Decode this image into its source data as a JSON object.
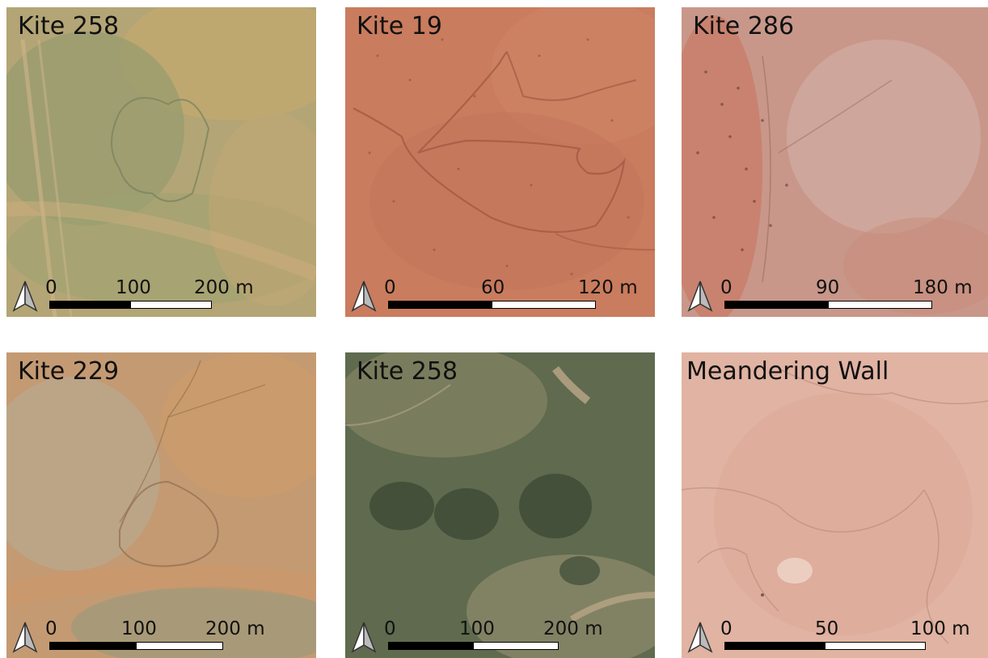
{
  "panels": [
    {
      "title": "Kite 258",
      "scale": [
        "0",
        "100",
        "200 m"
      ],
      "base_color": "#b8a878"
    },
    {
      "title": "Kite 19",
      "scale": [
        "0",
        "60",
        "120 m"
      ],
      "base_color": "#c97a5c"
    },
    {
      "title": "Kite 286",
      "scale": [
        "0",
        "90",
        "180 m"
      ],
      "base_color": "#c99480"
    },
    {
      "title": "Kite 229",
      "scale": [
        "0",
        "100",
        "200 m"
      ],
      "base_color": "#c89a70"
    },
    {
      "title": "Kite 258",
      "scale": [
        "0",
        "100",
        "200 m"
      ],
      "base_color": "#5e6a4e"
    },
    {
      "title": "Meandering Wall",
      "scale": [
        "0",
        "50",
        "100 m"
      ],
      "base_color": "#e0b0a0"
    }
  ],
  "icons": {
    "north_arrow": "north-arrow-icon"
  }
}
